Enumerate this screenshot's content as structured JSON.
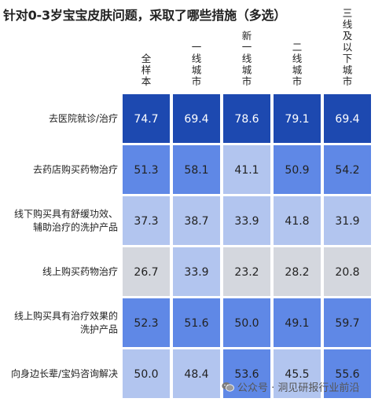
{
  "title": "针对0-3岁宝宝皮肤问题，采取了哪些措施（多选）",
  "watermark": {
    "text": "公众号 · 洞见研报行业前沿",
    "icon": "wechat-icon"
  },
  "colors": {
    "high": "#1d49b0",
    "mid": "#5f88e6",
    "light": "#b2c5ef",
    "neutral": "#d4d7de",
    "text_dark": "#222222",
    "text_light": "#ffffff"
  },
  "chart_data": {
    "type": "heatmap",
    "title": "针对0-3岁宝宝皮肤问题，采取了哪些措施（多选）",
    "columns": [
      "全样本",
      "一线城市",
      "新一线城市",
      "二线城市",
      "三线及以下城市"
    ],
    "rows": [
      {
        "label": [
          "去医院就诊/治疗"
        ],
        "values": [
          74.7,
          69.4,
          78.6,
          79.1,
          69.4
        ],
        "levels": [
          "high",
          "high",
          "high",
          "high",
          "high"
        ]
      },
      {
        "label": [
          "去药店购买药物治疗"
        ],
        "values": [
          51.3,
          58.1,
          41.1,
          50.9,
          54.2
        ],
        "levels": [
          "mid",
          "mid",
          "light",
          "mid",
          "mid"
        ]
      },
      {
        "label": [
          "线下购买具有舒缓功效、",
          "辅助治疗的洗护产品"
        ],
        "values": [
          37.3,
          38.7,
          33.9,
          41.8,
          31.9
        ],
        "levels": [
          "light",
          "light",
          "light",
          "light",
          "light"
        ]
      },
      {
        "label": [
          "线上购买药物治疗"
        ],
        "values": [
          26.7,
          33.9,
          23.2,
          28.2,
          20.8
        ],
        "levels": [
          "neutral",
          "light",
          "neutral",
          "neutral",
          "neutral"
        ]
      },
      {
        "label": [
          "线上购买具有治疗效果的",
          "洗护产品"
        ],
        "values": [
          52.3,
          51.6,
          50.0,
          49.1,
          59.7
        ],
        "levels": [
          "mid",
          "mid",
          "mid",
          "mid",
          "mid"
        ]
      },
      {
        "label": [
          "向身边长辈/宝妈咨询解决"
        ],
        "values": [
          50.0,
          48.4,
          53.6,
          45.5,
          55.6
        ],
        "levels": [
          "light",
          "light",
          "mid",
          "light",
          "mid"
        ]
      }
    ]
  }
}
